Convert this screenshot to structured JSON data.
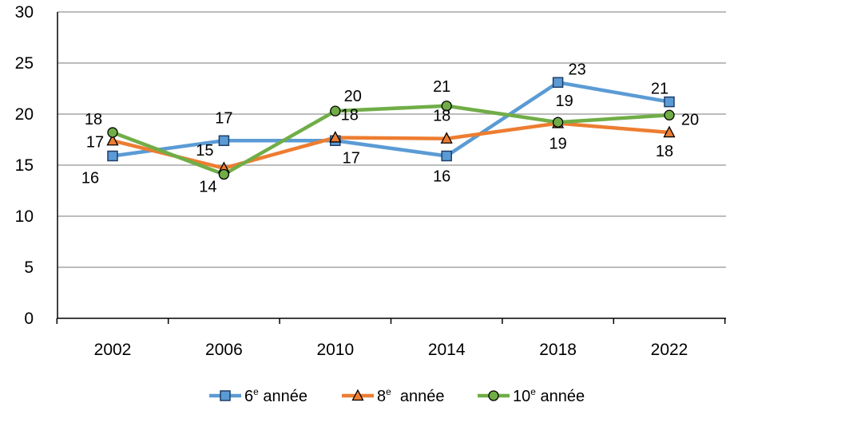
{
  "chart_data": {
    "type": "line",
    "x": [
      "2002",
      "2006",
      "2010",
      "2014",
      "2018",
      "2022"
    ],
    "ylim": [
      0,
      30
    ],
    "yticks": [
      "0",
      "5",
      "10",
      "15",
      "20",
      "25",
      "30"
    ],
    "grid": true,
    "legend_position": "bottom",
    "series": [
      {
        "name": "6e année",
        "legend_base": "6",
        "legend_sup": "e",
        "legend_rest": " année",
        "color": "#5B9BD5",
        "marker": "square",
        "values": [
          15.9,
          17.4,
          17.4,
          15.9,
          23.1,
          21.2
        ],
        "labels": [
          "16",
          "17",
          "17",
          "16",
          "23",
          "21"
        ]
      },
      {
        "name": "8e année",
        "legend_base": "8",
        "legend_sup": "e",
        "legend_rest": "  année",
        "color": "#ED7D31",
        "marker": "triangle",
        "values": [
          17.4,
          14.7,
          17.7,
          17.6,
          19.1,
          18.2
        ],
        "labels": [
          "17",
          "15",
          "18",
          "18",
          "19",
          "18"
        ]
      },
      {
        "name": "10e année",
        "legend_base": "10",
        "legend_sup": "e",
        "legend_rest": " année",
        "color": "#70AD47",
        "marker": "circle",
        "values": [
          18.2,
          14.1,
          20.3,
          20.8,
          19.2,
          19.9
        ],
        "labels": [
          "18",
          "14",
          "20",
          "21",
          "19",
          "20"
        ]
      }
    ]
  }
}
